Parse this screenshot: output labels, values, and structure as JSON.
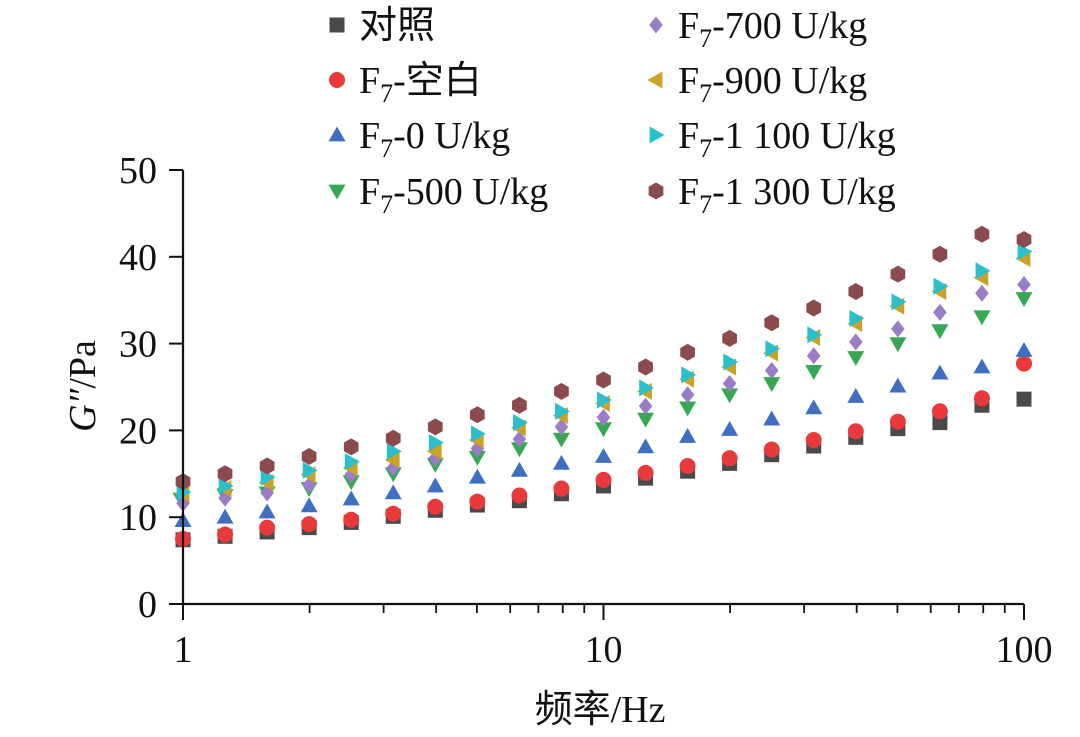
{
  "chart_data": {
    "type": "scatter",
    "title": "",
    "xlabel": "频率/Hz",
    "ylabel": "G″/Pa",
    "ylabel_italic_part": "G″",
    "ylabel_rest": "/Pa",
    "xscale": "log",
    "xlim": [
      1,
      100
    ],
    "ylim": [
      0,
      50
    ],
    "x_ticks": [
      {
        "value": 1,
        "label": "1"
      },
      {
        "value": 10,
        "label": "10"
      },
      {
        "value": 100,
        "label": "100"
      }
    ],
    "y_ticks": [
      {
        "value": 0,
        "label": "0"
      },
      {
        "value": 10,
        "label": "10"
      },
      {
        "value": 20,
        "label": "20"
      },
      {
        "value": 30,
        "label": "30"
      },
      {
        "value": 40,
        "label": "40"
      },
      {
        "value": 50,
        "label": "50"
      }
    ],
    "grid": false,
    "legend_position": "top",
    "x": [
      1.0,
      1.259,
      1.585,
      1.995,
      2.512,
      3.162,
      3.981,
      5.012,
      6.31,
      7.943,
      10.0,
      12.59,
      15.85,
      19.95,
      25.12,
      31.62,
      39.81,
      50.12,
      63.1,
      79.43,
      100.0
    ],
    "series": [
      {
        "name": "对照",
        "name_main": "对照",
        "name_sub": "",
        "name_rest": "",
        "marker": "square",
        "color": "#4a4a4a",
        "values": [
          7.4,
          7.8,
          8.3,
          8.8,
          9.4,
          10.1,
          10.8,
          11.4,
          11.9,
          12.7,
          13.6,
          14.5,
          15.3,
          16.2,
          17.2,
          18.2,
          19.2,
          20.2,
          20.9,
          22.9,
          23.6
        ]
      },
      {
        "name": "F7-空白",
        "name_main": "F",
        "name_sub": "7",
        "name_rest": "-空白",
        "marker": "circle",
        "color": "#e8393b",
        "values": [
          7.5,
          8.0,
          8.8,
          9.2,
          9.7,
          10.4,
          11.2,
          11.8,
          12.5,
          13.3,
          14.3,
          15.1,
          15.9,
          16.8,
          17.8,
          18.9,
          19.9,
          21.0,
          22.2,
          23.7,
          27.7
        ]
      },
      {
        "name": "F7-0 U/kg",
        "name_main": "F",
        "name_sub": "7",
        "name_rest": "-0 U/kg",
        "marker": "triangle-up",
        "color": "#3f6fc2",
        "values": [
          9.6,
          10.0,
          10.6,
          11.3,
          12.1,
          12.8,
          13.6,
          14.6,
          15.4,
          16.2,
          17.0,
          18.1,
          19.3,
          20.1,
          21.3,
          22.6,
          23.9,
          25.1,
          26.6,
          27.3,
          29.2
        ]
      },
      {
        "name": "F7-500 U/kg",
        "name_main": "F",
        "name_sub": "7",
        "name_rest": "-500 U/kg",
        "marker": "triangle-down",
        "color": "#36a852",
        "values": [
          12.1,
          12.5,
          12.8,
          13.3,
          14.1,
          15.0,
          16.1,
          16.9,
          17.9,
          19.0,
          20.2,
          21.3,
          22.6,
          24.1,
          25.4,
          26.8,
          28.4,
          30.0,
          31.5,
          33.1,
          35.2
        ]
      },
      {
        "name": "F7-700 U/kg",
        "name_main": "F",
        "name_sub": "7",
        "name_rest": "-700 U/kg",
        "marker": "diamond",
        "color": "#9b7cc6",
        "values": [
          11.6,
          12.2,
          12.8,
          13.7,
          14.9,
          15.7,
          16.8,
          17.9,
          19.0,
          20.4,
          21.5,
          22.8,
          24.1,
          25.4,
          26.9,
          28.6,
          30.2,
          31.7,
          33.6,
          35.8,
          36.8
        ]
      },
      {
        "name": "F7-900 U/kg",
        "name_main": "F",
        "name_sub": "7",
        "name_rest": "-900 U/kg",
        "marker": "triangle-left",
        "color": "#c9a227",
        "values": [
          12.7,
          13.3,
          14.0,
          14.9,
          15.7,
          16.6,
          17.6,
          18.9,
          20.3,
          21.7,
          23.1,
          24.5,
          25.9,
          27.3,
          28.9,
          30.7,
          32.3,
          34.3,
          36.0,
          37.6,
          39.8
        ]
      },
      {
        "name": "F7-1 100 U/kg",
        "name_main": "F",
        "name_sub": "7",
        "name_rest": "-1 100 U/kg",
        "marker": "triangle-right",
        "color": "#2bbfcc",
        "values": [
          12.9,
          13.6,
          14.6,
          15.4,
          16.4,
          17.6,
          18.6,
          19.6,
          20.9,
          22.2,
          23.5,
          24.9,
          26.4,
          27.9,
          29.4,
          31.0,
          32.9,
          34.8,
          36.6,
          38.4,
          40.6
        ]
      },
      {
        "name": "F7-1 300 U/kg",
        "name_main": "F",
        "name_sub": "7",
        "name_rest": "-1 300 U/kg",
        "marker": "hexagon",
        "color": "#8b4a4c",
        "values": [
          14.1,
          15.0,
          15.9,
          17.0,
          18.1,
          19.1,
          20.4,
          21.8,
          22.9,
          24.5,
          25.8,
          27.3,
          29.0,
          30.6,
          32.4,
          34.1,
          36.0,
          38.0,
          40.3,
          42.6,
          42.0
        ]
      }
    ]
  }
}
